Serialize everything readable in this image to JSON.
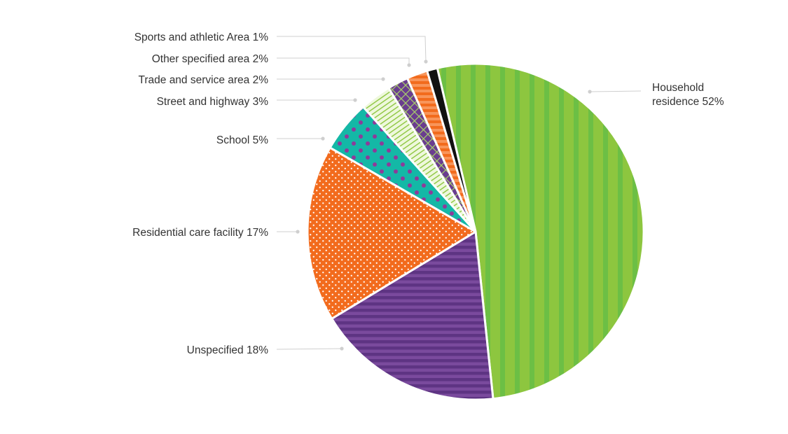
{
  "chart_data": {
    "type": "pie",
    "slices": [
      {
        "category": "Household residence",
        "value": 52,
        "label_lines": [
          "Household",
          "residence  52%"
        ],
        "color": "#8dc63f",
        "pattern": "vertical-stripes"
      },
      {
        "category": "Unspecified",
        "value": 18,
        "label_lines": [
          "Unspecified  18%"
        ],
        "color": "#6a3d8f",
        "pattern": "horizontal-stripes"
      },
      {
        "category": "Residential care facility",
        "value": 17,
        "label_lines": [
          "Residential care facility  17%"
        ],
        "color": "#f26b1d",
        "pattern": "white-dots"
      },
      {
        "category": "School",
        "value": 5,
        "label_lines": [
          "School  5%"
        ],
        "color": "#14b8a6",
        "pattern": "purple-dots"
      },
      {
        "category": "Street and highway",
        "value": 3,
        "label_lines": [
          "Street and highway  3%"
        ],
        "color": "#d9f0b0",
        "pattern": "diagonal-lines"
      },
      {
        "category": "Trade and service area",
        "value": 2,
        "label_lines": [
          "Trade and service area  2%"
        ],
        "color": "#6a3d8f",
        "pattern": "crosshatch"
      },
      {
        "category": "Other specified area",
        "value": 2,
        "label_lines": [
          "Other specified area  2%"
        ],
        "color": "#f26b1d",
        "pattern": "horizontal-stripes"
      },
      {
        "category": "Sports and athletic Area",
        "value": 1,
        "label_lines": [
          "Sports and athletic Area  1%"
        ],
        "color": "#111111",
        "pattern": "solid"
      }
    ],
    "legend": "none",
    "labels": "external-with-leader-lines"
  }
}
